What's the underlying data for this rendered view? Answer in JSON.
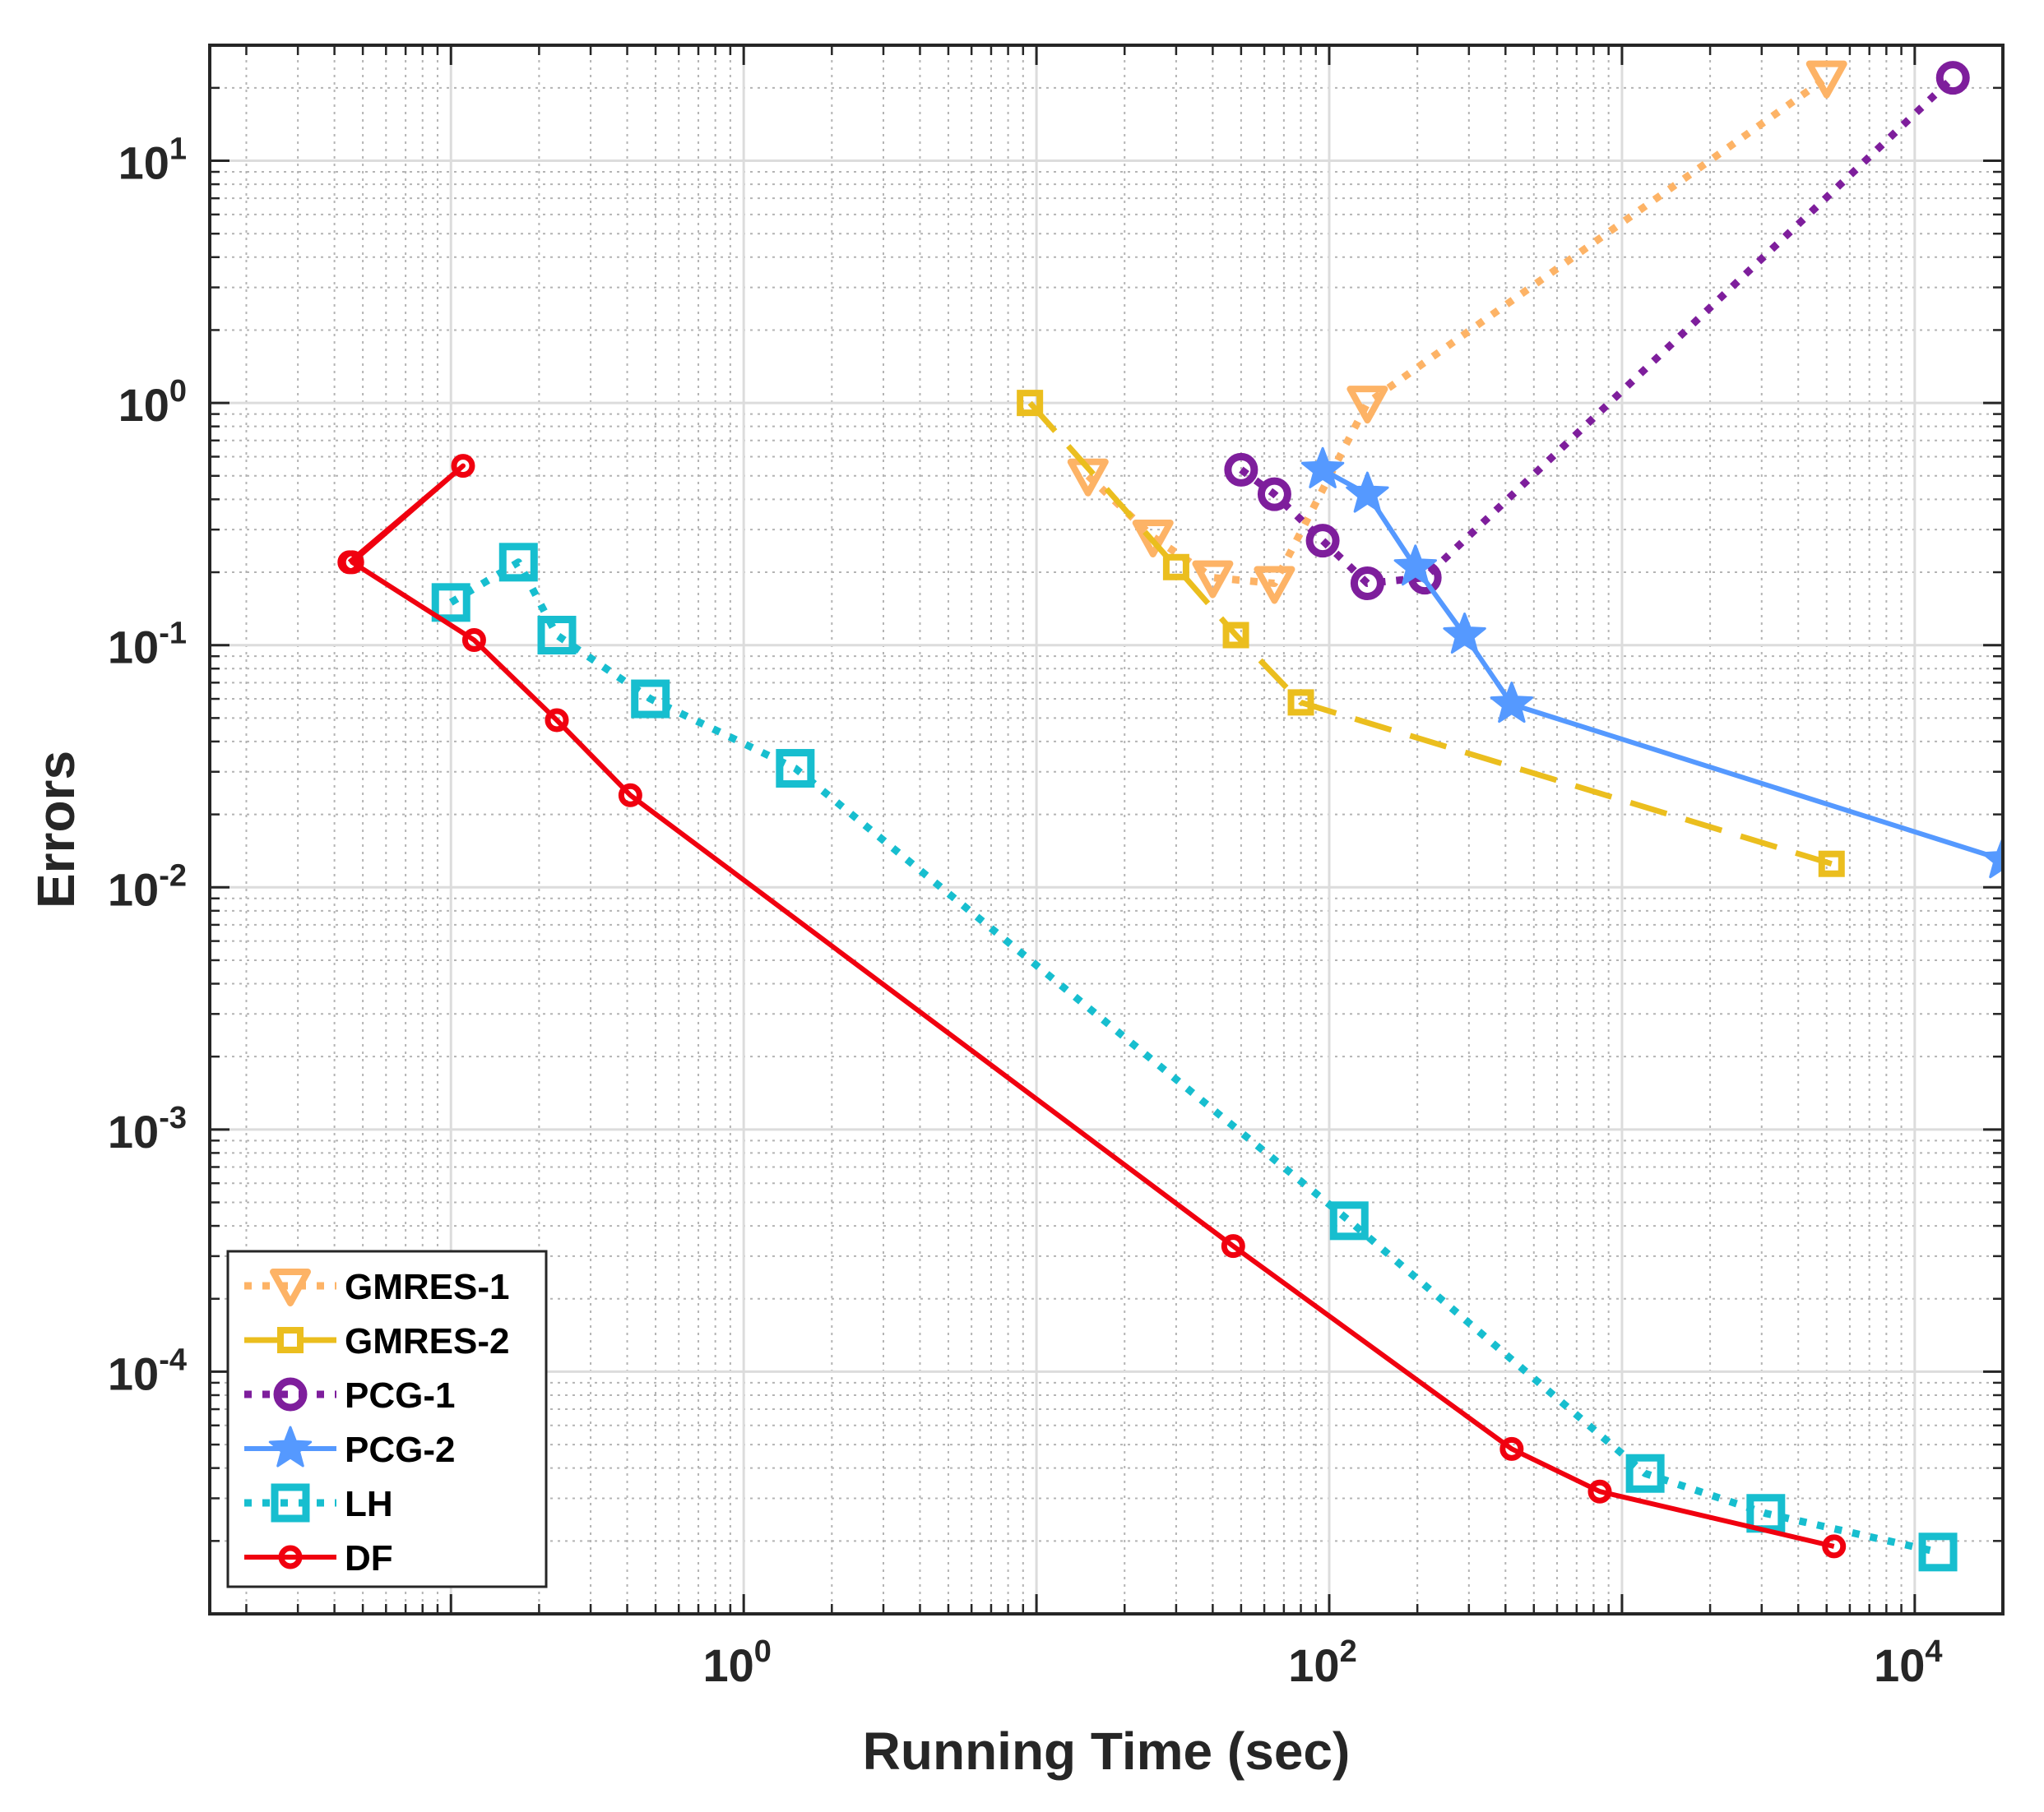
{
  "chart_data": {
    "type": "line",
    "title": "",
    "xlabel": "Running Time (sec)",
    "ylabel": "Errors",
    "xscale": "log",
    "yscale": "log",
    "xlim": [
      0.015,
      20000
    ],
    "ylim": [
      1e-05,
      30
    ],
    "grid": true,
    "minor_grid": true,
    "legend_position": "bottom-left",
    "x_ticks": [
      {
        "value": 1,
        "base": "10",
        "exp": "0"
      },
      {
        "value": 100,
        "base": "10",
        "exp": "2"
      },
      {
        "value": 10000,
        "base": "10",
        "exp": "4"
      }
    ],
    "y_ticks": [
      {
        "value": 0.0001,
        "base": "10",
        "exp": "-4"
      },
      {
        "value": 0.001,
        "base": "10",
        "exp": "-3"
      },
      {
        "value": 0.01,
        "base": "10",
        "exp": "-2"
      },
      {
        "value": 0.1,
        "base": "10",
        "exp": "-1"
      },
      {
        "value": 1,
        "base": "10",
        "exp": "0"
      },
      {
        "value": 10,
        "base": "10",
        "exp": "1"
      }
    ],
    "series": [
      {
        "name": "GMRES-1",
        "color": "#FDB366",
        "dash": "dotted",
        "marker": "triangle-down",
        "x": [
          15,
          25,
          40,
          65,
          135,
          5000
        ],
        "y": [
          0.5,
          0.28,
          0.19,
          0.18,
          1.0,
          22
        ]
      },
      {
        "name": "GMRES-2",
        "color": "#EBBE1E",
        "dash": "dashed",
        "marker": "square-small",
        "x": [
          9.5,
          30,
          48,
          80,
          5200
        ],
        "y": [
          1.0,
          0.21,
          0.11,
          0.058,
          0.0125
        ]
      },
      {
        "name": "PCG-1",
        "color": "#7E1E9C",
        "dash": "dotted",
        "marker": "circle",
        "x": [
          50,
          65,
          95,
          135,
          212,
          13500
        ],
        "y": [
          0.53,
          0.42,
          0.27,
          0.18,
          0.19,
          22
        ]
      },
      {
        "name": "PCG-2",
        "color": "#5599FF",
        "dash": "solid",
        "marker": "star",
        "x": [
          95,
          135,
          197,
          290,
          420,
          20000
        ],
        "y": [
          0.53,
          0.42,
          0.21,
          0.11,
          0.057,
          0.013
        ]
      },
      {
        "name": "LH",
        "color": "#17BECF",
        "dash": "dotted",
        "marker": "square",
        "x": [
          0.1,
          0.17,
          0.23,
          0.48,
          1.5,
          117,
          1200,
          3100,
          12000
        ],
        "y": [
          0.15,
          0.22,
          0.11,
          0.06,
          0.031,
          0.00042,
          3.8e-05,
          2.6e-05,
          1.8e-05
        ]
      },
      {
        "name": "DF",
        "color": "#F0000F",
        "dash": "solid",
        "marker": "circle-small",
        "x": [
          0.045,
          0.11,
          0.046,
          0.12,
          0.23,
          0.41,
          47,
          420,
          840,
          5300
        ],
        "y": [
          0.22,
          0.55,
          0.22,
          0.105,
          0.049,
          0.024,
          0.00033,
          4.8e-05,
          3.2e-05,
          1.9e-05
        ]
      }
    ]
  }
}
